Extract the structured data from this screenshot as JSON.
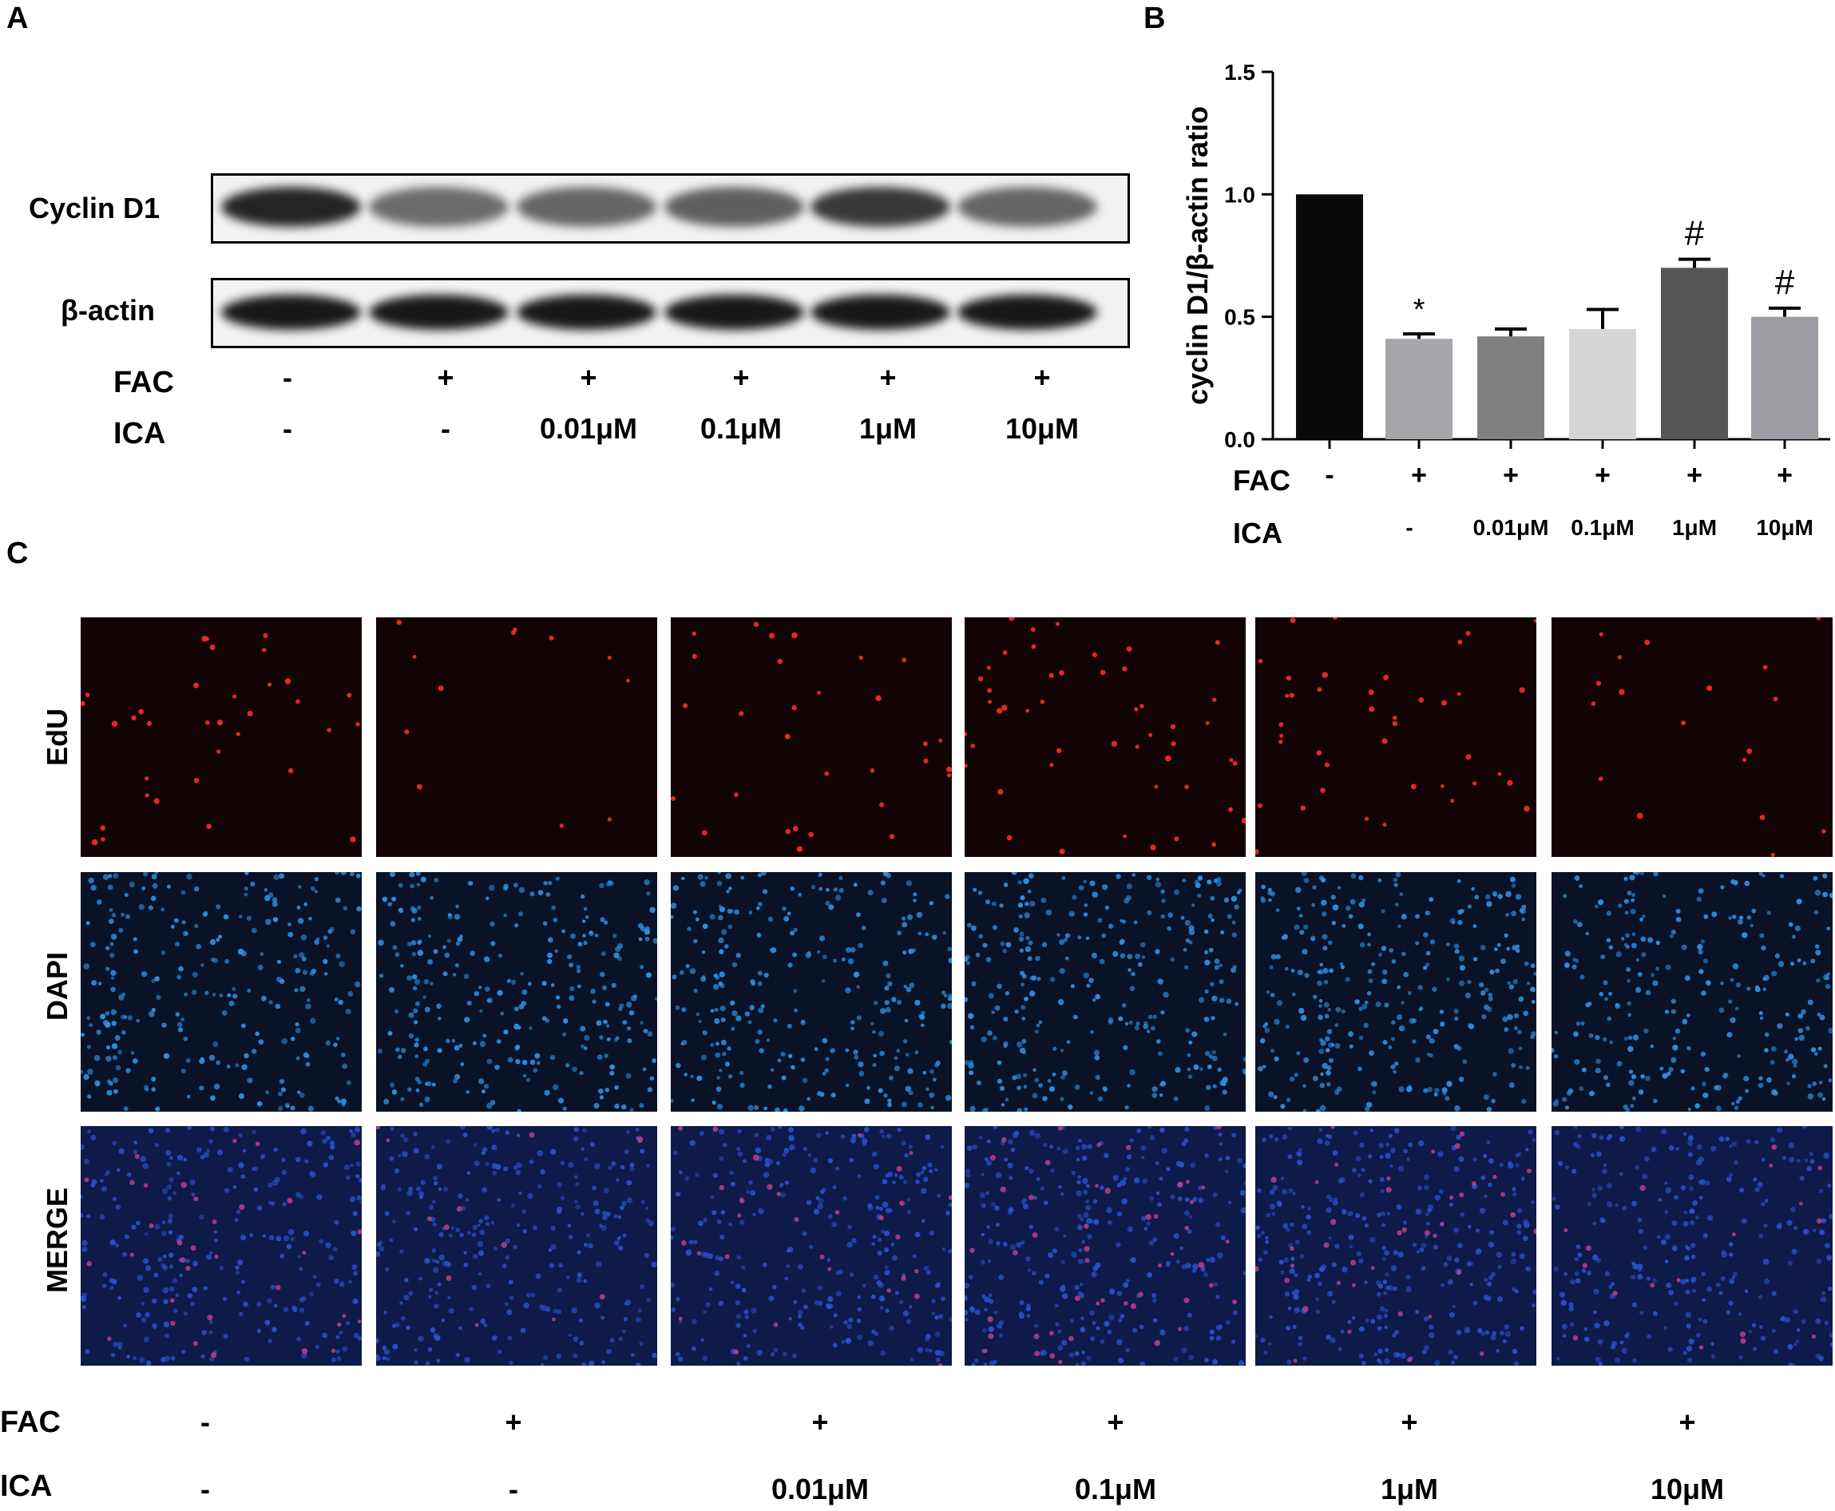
{
  "panels": {
    "a": "A",
    "b": "B",
    "c": "C"
  },
  "blot": {
    "rows": [
      {
        "label": "Cyclin D1",
        "band_color": "#1a1a1a",
        "intensity": [
          1.0,
          0.45,
          0.5,
          0.55,
          0.85,
          0.5
        ]
      },
      {
        "label": "β-actin",
        "band_color": "#0d0d0d",
        "intensity": [
          1.0,
          1.0,
          1.0,
          1.0,
          1.0,
          1.0
        ]
      }
    ]
  },
  "conditions": {
    "fac_label": "FAC",
    "ica_label": "ICA",
    "fac": [
      "-",
      "+",
      "+",
      "+",
      "+",
      "+"
    ],
    "ica": [
      "-",
      "-",
      "0.01μM",
      "0.1μM",
      "1μM",
      "10μM"
    ]
  },
  "chart_data": {
    "type": "bar",
    "ylabel": "cyclin D1/β-actin ratio",
    "ylim": [
      0,
      1.5
    ],
    "yticks": [
      "0.0",
      "0.5",
      "1.0",
      "1.5"
    ],
    "categories_fac": [
      "-",
      "+",
      "+",
      "+",
      "+",
      "+"
    ],
    "categories_ica": [
      "-",
      "-",
      "0.01μM",
      "0.1μM",
      "1μM",
      "10μM"
    ],
    "values": [
      1.0,
      0.41,
      0.42,
      0.45,
      0.7,
      0.5
    ],
    "errors": [
      0.0,
      0.02,
      0.03,
      0.08,
      0.035,
      0.035
    ],
    "colors": [
      "#0a0a0a",
      "#a6a6ab",
      "#7f7f7f",
      "#d6d6d6",
      "#555555",
      "#9d9da3"
    ],
    "annotations": [
      "",
      "*",
      "",
      "",
      "#",
      "#"
    ]
  },
  "microscopy": {
    "rows": [
      "EdU",
      "DAPI",
      "MERGE"
    ],
    "edu_color": "#ff2a2a",
    "dapi_color": "#2f8fe0",
    "merge_color": "#2a50c8"
  }
}
